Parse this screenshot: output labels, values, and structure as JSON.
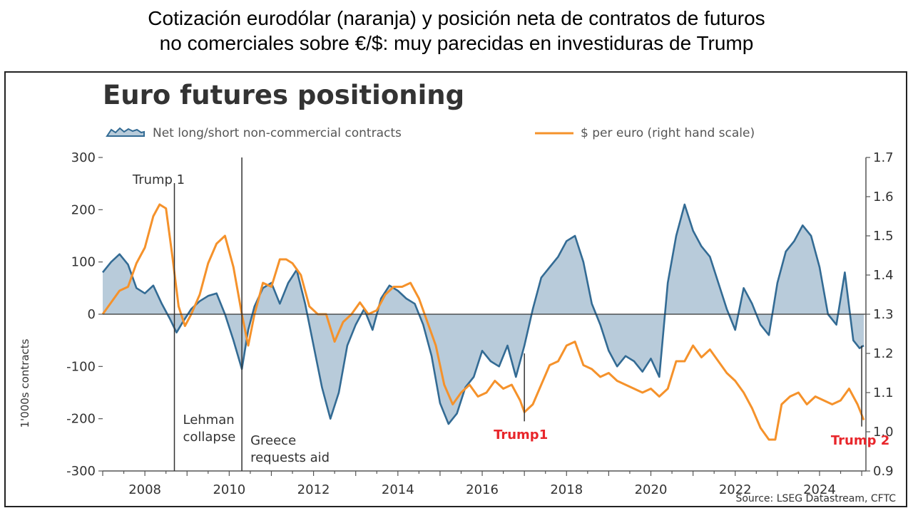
{
  "header": {
    "line1": "Cotización eurodólar (naranja) y posición neta de contratos de futuros",
    "line2": "no comerciales sobre €/$: muy parecidas en investiduras de Trump"
  },
  "chart_data": {
    "type": "line",
    "title": "Euro futures positioning",
    "ylabel": "1'000s contracts",
    "source": "Source: LSEG Datastream, CFTC",
    "xlim": [
      2007.0,
      2025.1
    ],
    "ylim": [
      -300,
      300
    ],
    "y2lim": [
      0.9,
      1.7
    ],
    "xticks": [
      2008,
      2010,
      2012,
      2014,
      2016,
      2018,
      2020,
      2022,
      2024
    ],
    "yticks": [
      -300,
      -200,
      -100,
      0,
      100,
      200,
      300
    ],
    "y2ticks": [
      0.9,
      1.0,
      1.1,
      1.2,
      1.3,
      1.4,
      1.5,
      1.6,
      1.7
    ],
    "legend_position": "top",
    "colors": {
      "positions_line": "#336b94",
      "positions_fill": "#b8cbda",
      "eurusd": "#f5922b",
      "annotation_red": "#e8262b",
      "axis": "#555555"
    },
    "series": [
      {
        "name": "Net long/short non-commercial contracts",
        "axis": "left",
        "style": "area",
        "x": [
          2007.0,
          2007.2,
          2007.4,
          2007.6,
          2007.8,
          2008.0,
          2008.2,
          2008.4,
          2008.6,
          2008.75,
          2008.9,
          2009.1,
          2009.3,
          2009.5,
          2009.7,
          2009.9,
          2010.1,
          2010.3,
          2010.45,
          2010.6,
          2010.8,
          2011.0,
          2011.2,
          2011.4,
          2011.6,
          2011.8,
          2012.0,
          2012.2,
          2012.4,
          2012.6,
          2012.8,
          2013.0,
          2013.2,
          2013.4,
          2013.6,
          2013.8,
          2014.0,
          2014.2,
          2014.4,
          2014.6,
          2014.8,
          2015.0,
          2015.2,
          2015.4,
          2015.6,
          2015.8,
          2016.0,
          2016.2,
          2016.4,
          2016.6,
          2016.8,
          2017.0,
          2017.2,
          2017.4,
          2017.6,
          2017.8,
          2018.0,
          2018.2,
          2018.4,
          2018.6,
          2018.8,
          2019.0,
          2019.2,
          2019.4,
          2019.6,
          2019.8,
          2020.0,
          2020.2,
          2020.4,
          2020.6,
          2020.8,
          2021.0,
          2021.2,
          2021.4,
          2021.6,
          2021.8,
          2022.0,
          2022.2,
          2022.4,
          2022.6,
          2022.8,
          2023.0,
          2023.2,
          2023.4,
          2023.6,
          2023.8,
          2024.0,
          2024.2,
          2024.4,
          2024.6,
          2024.8,
          2024.95,
          2025.05
        ],
        "values": [
          80,
          100,
          115,
          95,
          50,
          40,
          55,
          20,
          -10,
          -35,
          -15,
          10,
          25,
          35,
          40,
          0,
          -50,
          -105,
          -30,
          15,
          50,
          60,
          20,
          60,
          85,
          20,
          -60,
          -140,
          -200,
          -150,
          -60,
          -20,
          10,
          -30,
          30,
          55,
          45,
          30,
          20,
          -20,
          -80,
          -170,
          -210,
          -190,
          -140,
          -120,
          -70,
          -90,
          -100,
          -60,
          -120,
          -60,
          10,
          70,
          90,
          110,
          140,
          150,
          100,
          20,
          -20,
          -70,
          -100,
          -80,
          -90,
          -110,
          -85,
          -120,
          60,
          150,
          210,
          160,
          130,
          110,
          60,
          10,
          -30,
          50,
          20,
          -20,
          -40,
          60,
          120,
          140,
          170,
          150,
          90,
          0,
          -20,
          80,
          -50,
          -65,
          -60
        ]
      },
      {
        "name": "$ per euro (right hand scale)",
        "axis": "right",
        "style": "line",
        "x": [
          2007.0,
          2007.2,
          2007.4,
          2007.6,
          2007.8,
          2008.0,
          2008.2,
          2008.35,
          2008.5,
          2008.65,
          2008.8,
          2008.95,
          2009.1,
          2009.3,
          2009.5,
          2009.7,
          2009.9,
          2010.1,
          2010.3,
          2010.45,
          2010.6,
          2010.8,
          2011.0,
          2011.2,
          2011.35,
          2011.5,
          2011.7,
          2011.9,
          2012.1,
          2012.3,
          2012.5,
          2012.7,
          2012.9,
          2013.1,
          2013.3,
          2013.5,
          2013.7,
          2013.9,
          2014.1,
          2014.3,
          2014.5,
          2014.7,
          2014.9,
          2015.1,
          2015.3,
          2015.5,
          2015.7,
          2015.9,
          2016.1,
          2016.3,
          2016.5,
          2016.7,
          2016.9,
          2017.0,
          2017.2,
          2017.4,
          2017.6,
          2017.8,
          2018.0,
          2018.2,
          2018.4,
          2018.6,
          2018.8,
          2019.0,
          2019.2,
          2019.4,
          2019.6,
          2019.8,
          2020.0,
          2020.2,
          2020.4,
          2020.6,
          2020.8,
          2021.0,
          2021.2,
          2021.4,
          2021.6,
          2021.8,
          2022.0,
          2022.2,
          2022.4,
          2022.6,
          2022.8,
          2022.95,
          2023.1,
          2023.3,
          2023.5,
          2023.7,
          2023.9,
          2024.1,
          2024.3,
          2024.5,
          2024.7,
          2024.9,
          2025.05
        ],
        "values": [
          1.3,
          1.33,
          1.36,
          1.37,
          1.43,
          1.47,
          1.55,
          1.58,
          1.57,
          1.45,
          1.32,
          1.27,
          1.3,
          1.35,
          1.43,
          1.48,
          1.5,
          1.42,
          1.3,
          1.22,
          1.3,
          1.38,
          1.37,
          1.44,
          1.44,
          1.43,
          1.4,
          1.32,
          1.3,
          1.3,
          1.23,
          1.28,
          1.3,
          1.33,
          1.3,
          1.31,
          1.35,
          1.37,
          1.37,
          1.38,
          1.34,
          1.28,
          1.22,
          1.12,
          1.07,
          1.1,
          1.12,
          1.09,
          1.1,
          1.13,
          1.11,
          1.12,
          1.08,
          1.05,
          1.07,
          1.12,
          1.17,
          1.18,
          1.22,
          1.23,
          1.17,
          1.16,
          1.14,
          1.15,
          1.13,
          1.12,
          1.11,
          1.1,
          1.11,
          1.09,
          1.11,
          1.18,
          1.18,
          1.22,
          1.19,
          1.21,
          1.18,
          1.15,
          1.13,
          1.1,
          1.06,
          1.01,
          0.98,
          0.98,
          1.07,
          1.09,
          1.1,
          1.07,
          1.09,
          1.08,
          1.07,
          1.08,
          1.11,
          1.07,
          1.03
        ]
      }
    ],
    "annotations": [
      {
        "label": "Trump 1",
        "x": 2008.7,
        "color": "gray",
        "line": true
      },
      {
        "label": "Lehman\ncollapse",
        "x": 2008.7,
        "color": "gray"
      },
      {
        "label": "Greece\nrequests aid",
        "x": 2010.3,
        "color": "gray",
        "line": true
      },
      {
        "label": "Trump1",
        "x": 2017.0,
        "color": "red",
        "line": true
      },
      {
        "label": "Trump 2",
        "x": 2025.0,
        "color": "red",
        "line": true
      }
    ]
  }
}
